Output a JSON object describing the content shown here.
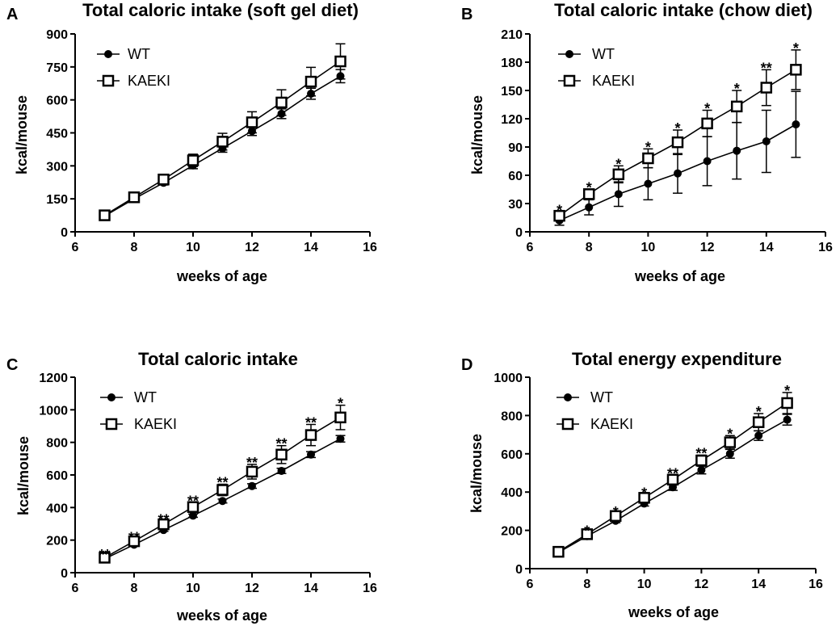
{
  "chart_data": [
    {
      "panel": "A",
      "type": "line",
      "title": "Total caloric intake (soft gel diet)",
      "xlabel": "weeks of age",
      "ylabel": "kcal/mouse",
      "xlim": [
        6,
        16
      ],
      "ylim": [
        0,
        900
      ],
      "xticks": [
        6,
        8,
        10,
        12,
        14,
        16
      ],
      "yticks": [
        0,
        150,
        300,
        450,
        600,
        750,
        900
      ],
      "legend": "top-left",
      "x": [
        7,
        8,
        9,
        10,
        11,
        12,
        13,
        14,
        15
      ],
      "series": [
        {
          "name": "WT",
          "marker": "filled-circle",
          "values": [
            72,
            150,
            223,
            302,
            380,
            458,
            537,
            628,
            708
          ],
          "errors": [
            6,
            8,
            10,
            15,
            18,
            20,
            22,
            25,
            30
          ]
        },
        {
          "name": "KAEKI",
          "marker": "open-square",
          "values": [
            75,
            157,
            238,
            325,
            410,
            498,
            588,
            683,
            775
          ],
          "errors": [
            6,
            10,
            15,
            28,
            38,
            48,
            58,
            65,
            80
          ]
        }
      ],
      "significance": []
    },
    {
      "panel": "B",
      "type": "line",
      "title": "Total caloric intake (chow diet)",
      "xlabel": "weeks of age",
      "ylabel": "kcal/mouse",
      "xlim": [
        6,
        16
      ],
      "ylim": [
        0,
        210
      ],
      "xticks": [
        6,
        8,
        10,
        12,
        14,
        16
      ],
      "yticks": [
        0,
        30,
        60,
        90,
        120,
        150,
        180,
        210
      ],
      "legend": "top-left",
      "x": [
        7,
        8,
        9,
        10,
        11,
        12,
        13,
        14,
        15
      ],
      "series": [
        {
          "name": "WT",
          "marker": "filled-circle",
          "values": [
            12,
            26,
            40,
            51,
            62,
            75,
            86,
            96,
            114
          ],
          "errors": [
            5,
            8,
            13,
            17,
            21,
            26,
            30,
            33,
            35
          ]
        },
        {
          "name": "KAEKI",
          "marker": "open-square",
          "values": [
            17,
            40,
            61,
            78,
            95,
            115,
            133,
            153,
            172
          ],
          "errors": [
            4,
            5,
            9,
            10,
            13,
            14,
            17,
            19,
            21
          ]
        }
      ],
      "significance": [
        "*",
        "*",
        "*",
        "*",
        "*",
        "*",
        "*",
        "**",
        "*"
      ]
    },
    {
      "panel": "C",
      "type": "line",
      "title": "Total caloric intake",
      "xlabel": "weeks of age",
      "ylabel": "kcal/mouse",
      "xlim": [
        6,
        16
      ],
      "ylim": [
        0,
        1200
      ],
      "xticks": [
        6,
        8,
        10,
        12,
        14,
        16
      ],
      "yticks": [
        0,
        200,
        400,
        600,
        800,
        1000,
        1200
      ],
      "legend": "top-left",
      "x": [
        7,
        8,
        9,
        10,
        11,
        12,
        13,
        14,
        15
      ],
      "series": [
        {
          "name": "WT",
          "marker": "filled-circle",
          "values": [
            85,
            172,
            262,
            350,
            440,
            532,
            625,
            725,
            822
          ],
          "errors": [
            5,
            6,
            8,
            10,
            12,
            14,
            16,
            18,
            20
          ]
        },
        {
          "name": "KAEKI",
          "marker": "open-square",
          "values": [
            92,
            193,
            297,
            403,
            508,
            620,
            725,
            845,
            953
          ],
          "errors": [
            8,
            12,
            18,
            25,
            35,
            45,
            55,
            65,
            75
          ]
        }
      ],
      "significance": [
        "**",
        "**",
        "**",
        "**",
        "**",
        "**",
        "**",
        "**",
        "*"
      ]
    },
    {
      "panel": "D",
      "type": "line",
      "title": "Total energy expenditure",
      "xlabel": "weeks of age",
      "ylabel": "kcal/mouse",
      "xlim": [
        6,
        16
      ],
      "ylim": [
        0,
        1000
      ],
      "xticks": [
        6,
        8,
        10,
        12,
        14,
        16
      ],
      "yticks": [
        0,
        200,
        400,
        600,
        800,
        1000
      ],
      "legend": "top-left",
      "x": [
        7,
        8,
        9,
        10,
        11,
        12,
        13,
        14,
        15
      ],
      "series": [
        {
          "name": "WT",
          "marker": "filled-circle",
          "values": [
            85,
            170,
            250,
            340,
            425,
            515,
            600,
            695,
            778
          ],
          "errors": [
            5,
            7,
            10,
            13,
            16,
            20,
            23,
            25,
            28
          ]
        },
        {
          "name": "KAEKI",
          "marker": "open-square",
          "values": [
            88,
            180,
            275,
            370,
            465,
            565,
            660,
            765,
            865
          ],
          "errors": [
            6,
            8,
            12,
            16,
            22,
            28,
            35,
            45,
            55
          ]
        }
      ],
      "significance": [
        "",
        "*",
        "*",
        "*",
        "**",
        "**",
        "*",
        "*",
        "*"
      ]
    }
  ]
}
